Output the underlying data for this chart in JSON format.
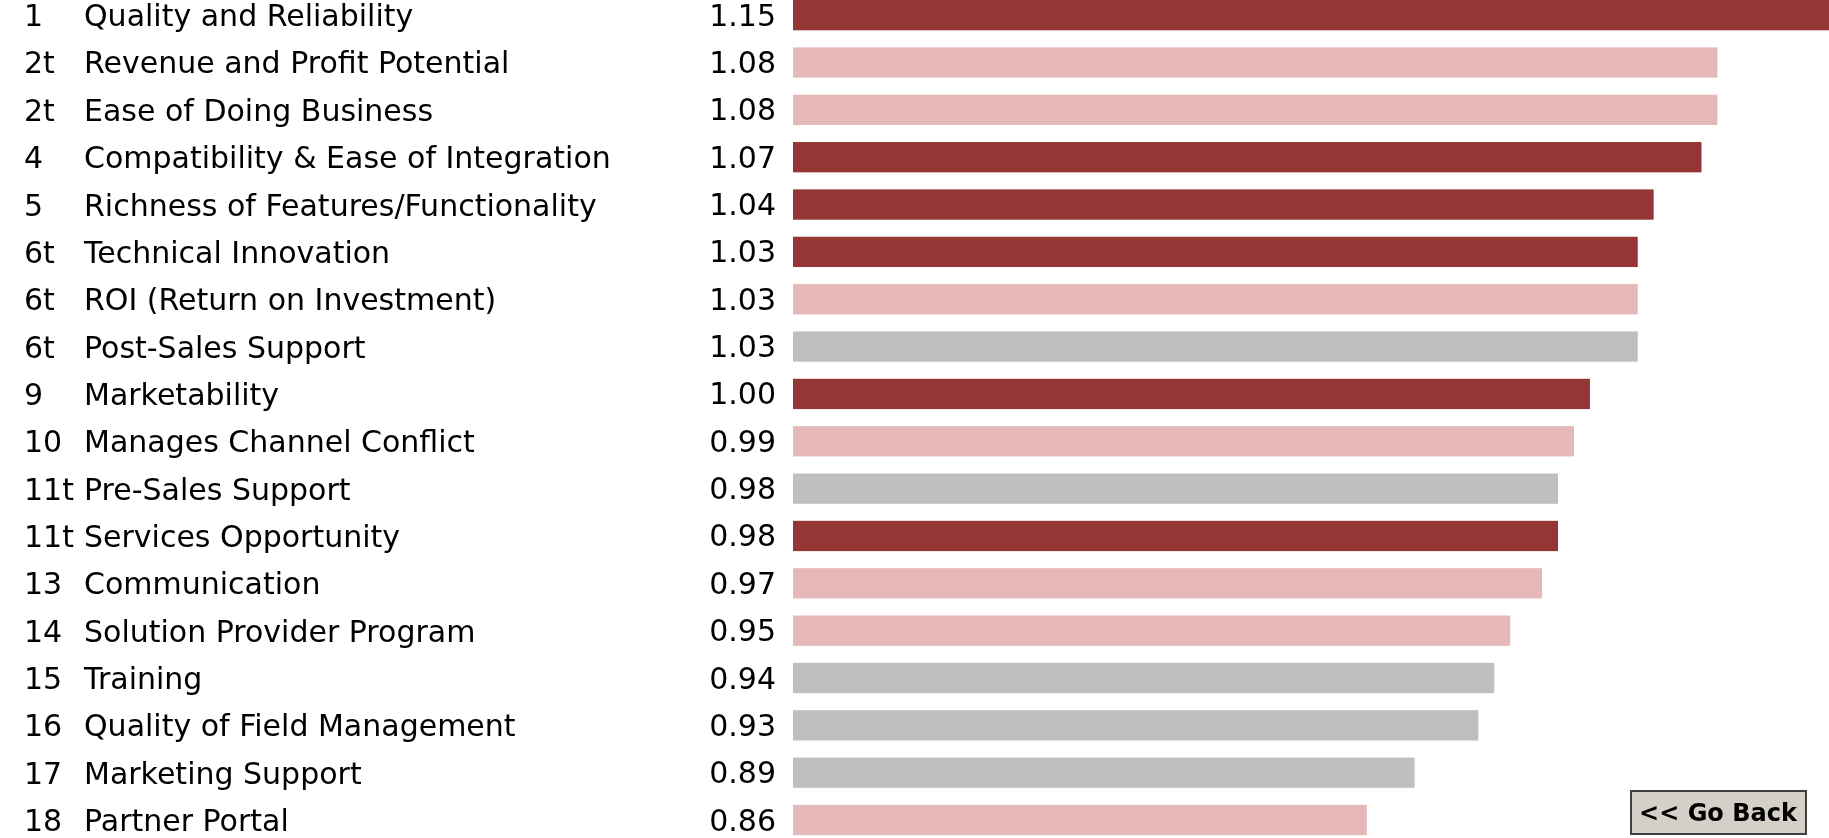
{
  "chart_data": {
    "type": "bar",
    "orientation": "horizontal",
    "data_labels": true,
    "tick_labels": "y",
    "xlim": [
      0.5,
      1.15
    ],
    "categories": [
      "1 Quality and Reliability",
      "2t Revenue and Profit Potential",
      "2t Ease of Doing Business",
      "4 Compatibility & Ease of Integration",
      "5 Richness of Features/Functionality",
      "6t Technical Innovation",
      "6t ROI (Return on Investment)",
      "6t Post-Sales Support",
      "9 Marketability",
      "10 Manages Channel Conflict",
      "11t Pre-Sales Support",
      "11t Services Opportunity",
      "13 Communication",
      "14 Solution Provider Program",
      "15 Training",
      "16 Quality of Field Management",
      "17 Marketing Support",
      "18 Partner Portal"
    ],
    "values": [
      1.15,
      1.08,
      1.08,
      1.07,
      1.04,
      1.03,
      1.03,
      1.03,
      1.0,
      0.99,
      0.98,
      0.98,
      0.97,
      0.95,
      0.94,
      0.93,
      0.89,
      0.86
    ],
    "value_labels": [
      "1.15",
      "1.08",
      "1.08",
      "1.07",
      "1.04",
      "1.03",
      "1.03",
      "1.03",
      "1.00",
      "0.99",
      "0.98",
      "0.98",
      "0.97",
      "0.95",
      "0.94",
      "0.93",
      "0.89",
      "0.86"
    ],
    "colors": [
      "#943634",
      "#e6b9b8",
      "#e6b9b8",
      "#943634",
      "#943634",
      "#943634",
      "#e6b9b8",
      "#bfbfbf",
      "#943634",
      "#e6b9b8",
      "#bfbfbf",
      "#943634",
      "#e6b9b8",
      "#e6b9b8",
      "#bfbfbf",
      "#bfbfbf",
      "#bfbfbf",
      "#e6b9b8"
    ],
    "annotations": [
      "<< Go Back"
    ]
  }
}
